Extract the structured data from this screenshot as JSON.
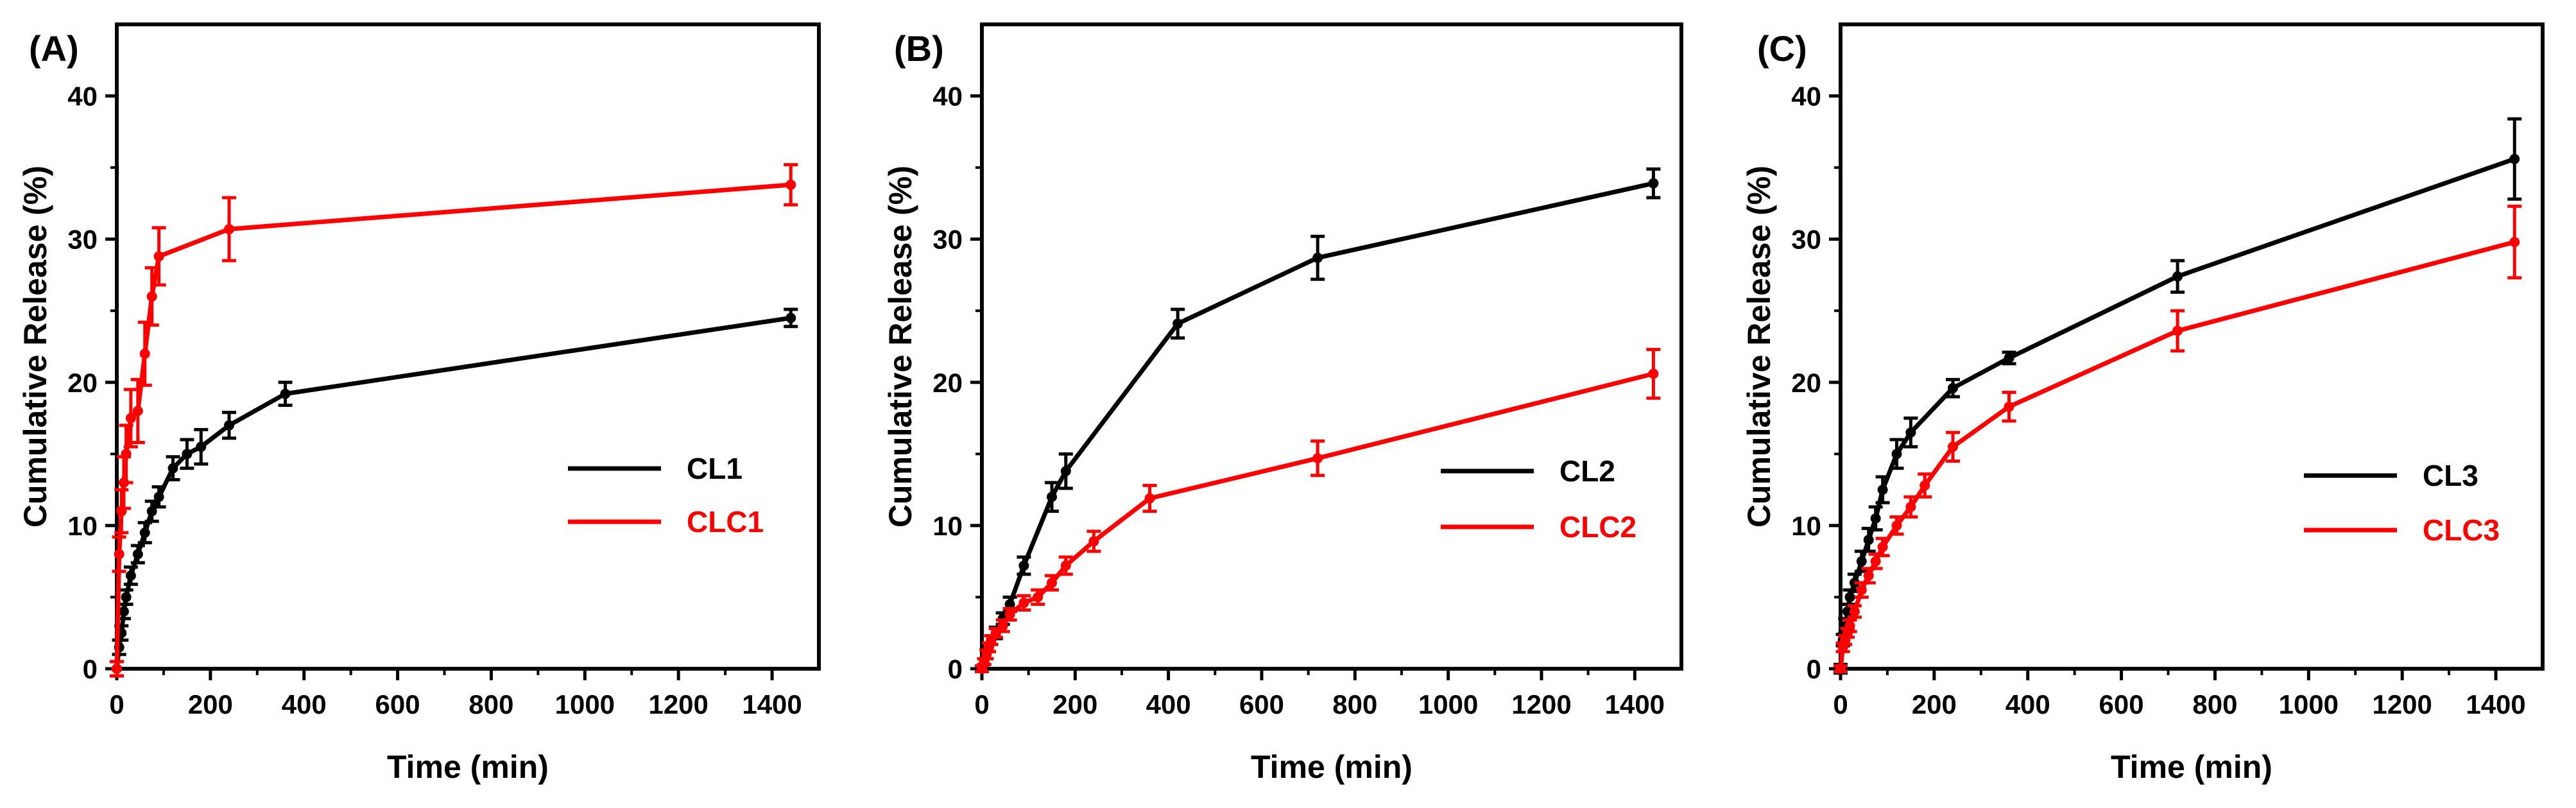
{
  "chart_data": [
    {
      "type": "line",
      "panel_label": "(A)",
      "xlabel": "Time (min)",
      "ylabel": "Cumulative Release (%)",
      "xlim": [
        0,
        1500
      ],
      "ylim": [
        0,
        45
      ],
      "xticks": [
        0,
        200,
        400,
        600,
        800,
        1000,
        1200,
        1400
      ],
      "yticks": [
        0,
        10,
        20,
        30,
        40
      ],
      "legend_position": "center-right",
      "series": [
        {
          "name": "CL1",
          "color": "#000000",
          "x": [
            0,
            5,
            10,
            15,
            20,
            30,
            45,
            60,
            75,
            90,
            120,
            150,
            180,
            240,
            360,
            1440
          ],
          "y": [
            0,
            1.5,
            2.5,
            4,
            5,
            6.5,
            8,
            9.5,
            11,
            12,
            14,
            15,
            15.5,
            17,
            19.2,
            24.5
          ],
          "err": [
            0.5,
            0.5,
            0.5,
            0.5,
            0.5,
            0.6,
            0.6,
            0.7,
            0.7,
            0.7,
            0.8,
            1.0,
            1.2,
            0.9,
            0.8,
            0.6
          ]
        },
        {
          "name": "CLC1",
          "color": "#ff0000",
          "x": [
            0,
            5,
            10,
            15,
            20,
            30,
            45,
            60,
            75,
            90,
            240,
            1440
          ],
          "y": [
            0,
            8,
            11,
            13,
            15,
            17.5,
            18,
            22,
            26,
            28.8,
            30.7,
            33.8
          ],
          "err": [
            0.5,
            1.2,
            1.5,
            1.8,
            2.0,
            2.0,
            2.2,
            2.2,
            2.0,
            2.0,
            2.2,
            1.4
          ]
        }
      ]
    },
    {
      "type": "line",
      "panel_label": "(B)",
      "xlabel": "Time (min)",
      "ylabel": "Cumulative Release (%)",
      "xlim": [
        0,
        1500
      ],
      "ylim": [
        0,
        45
      ],
      "xticks": [
        0,
        200,
        400,
        600,
        800,
        1000,
        1200,
        1400
      ],
      "yticks": [
        0,
        10,
        20,
        30,
        40
      ],
      "legend_position": "center-right",
      "series": [
        {
          "name": "CL2",
          "color": "#000000",
          "x": [
            0,
            5,
            10,
            15,
            20,
            30,
            45,
            60,
            90,
            150,
            180,
            420,
            720,
            1440
          ],
          "y": [
            0,
            0.5,
            1,
            1.5,
            2,
            2.5,
            3.5,
            4.5,
            7.2,
            12,
            13.8,
            24.1,
            28.7,
            33.9
          ],
          "err": [
            0.2,
            0.2,
            0.3,
            0.3,
            0.3,
            0.4,
            0.4,
            0.5,
            0.6,
            1.0,
            1.2,
            1.0,
            1.5,
            1.0
          ]
        },
        {
          "name": "CLC2",
          "color": "#ff0000",
          "x": [
            0,
            5,
            10,
            15,
            20,
            30,
            45,
            60,
            90,
            120,
            150,
            180,
            240,
            360,
            720,
            1440
          ],
          "y": [
            0,
            0.5,
            1,
            1.5,
            2,
            2.5,
            3,
            3.8,
            4.6,
            5,
            6,
            7.2,
            8.9,
            11.9,
            14.7,
            20.6
          ],
          "err": [
            0.2,
            0.2,
            0.3,
            0.3,
            0.3,
            0.3,
            0.4,
            0.4,
            0.5,
            0.5,
            0.5,
            0.6,
            0.7,
            0.9,
            1.2,
            1.7
          ]
        }
      ]
    },
    {
      "type": "line",
      "panel_label": "(C)",
      "xlabel": "Time (min)",
      "ylabel": "Cumulative Release (%)",
      "xlim": [
        0,
        1500
      ],
      "ylim": [
        0,
        45
      ],
      "xticks": [
        0,
        200,
        400,
        600,
        800,
        1000,
        1200,
        1400
      ],
      "yticks": [
        0,
        10,
        20,
        30,
        40
      ],
      "legend_position": "center-right",
      "series": [
        {
          "name": "CL3",
          "color": "#000000",
          "x": [
            0,
            5,
            10,
            15,
            20,
            30,
            45,
            60,
            75,
            90,
            120,
            150,
            240,
            360,
            720,
            1440
          ],
          "y": [
            0,
            2,
            3,
            4,
            5,
            6,
            7.5,
            9,
            10.5,
            12.5,
            15,
            16.5,
            19.6,
            21.7,
            27.4,
            35.6
          ],
          "err": [
            0.3,
            0.4,
            0.5,
            0.5,
            0.5,
            0.6,
            0.7,
            0.8,
            0.8,
            0.9,
            1.0,
            1.0,
            0.6,
            0.4,
            1.1,
            2.8
          ]
        },
        {
          "name": "CLC3",
          "color": "#ff0000",
          "x": [
            0,
            5,
            10,
            15,
            20,
            30,
            45,
            60,
            75,
            90,
            120,
            150,
            180,
            240,
            360,
            720,
            1440
          ],
          "y": [
            0,
            1.5,
            2,
            2.5,
            3,
            4,
            5.5,
            6.5,
            7.5,
            8.5,
            10,
            11.3,
            12.8,
            15.5,
            18.3,
            23.6,
            29.8
          ],
          "err": [
            0.2,
            0.3,
            0.3,
            0.3,
            0.4,
            0.4,
            0.5,
            0.5,
            0.5,
            0.6,
            0.6,
            0.7,
            0.8,
            1.0,
            1.0,
            1.4,
            2.5
          ]
        }
      ]
    }
  ]
}
